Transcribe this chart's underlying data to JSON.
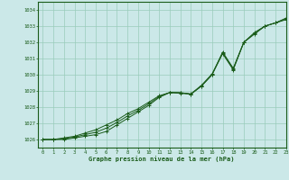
{
  "background_color": "#cbe8e8",
  "plot_bg_color": "#cbe8e8",
  "grid_color": "#99ccbb",
  "line_color": "#1a5c1a",
  "xlabel": "Graphe pression niveau de la mer (hPa)",
  "xlim": [
    -0.5,
    23
  ],
  "ylim": [
    1025.5,
    1034.5
  ],
  "yticks": [
    1026,
    1027,
    1028,
    1029,
    1030,
    1031,
    1032,
    1033,
    1034
  ],
  "xticks": [
    0,
    1,
    2,
    3,
    4,
    5,
    6,
    7,
    8,
    9,
    10,
    11,
    12,
    13,
    14,
    15,
    16,
    17,
    18,
    19,
    20,
    21,
    22,
    23
  ],
  "hours": [
    0,
    1,
    2,
    3,
    4,
    5,
    6,
    7,
    8,
    9,
    10,
    11,
    12,
    13,
    14,
    15,
    16,
    17,
    18,
    19,
    20,
    21,
    22,
    23
  ],
  "line1": [
    1026.0,
    1026.0,
    1026.0,
    1026.1,
    1026.2,
    1026.3,
    1026.5,
    1026.9,
    1027.3,
    1027.7,
    1028.1,
    1028.6,
    1028.9,
    1028.9,
    1028.8,
    1029.3,
    1030.0,
    1031.4,
    1030.4,
    1032.0,
    1032.6,
    1033.0,
    1033.2,
    1033.5
  ],
  "line2": [
    1026.0,
    1026.0,
    1026.1,
    1026.2,
    1026.4,
    1026.6,
    1026.9,
    1027.2,
    1027.6,
    1027.9,
    1028.3,
    1028.7,
    1028.9,
    1028.85,
    1028.8,
    1029.3,
    1030.0,
    1031.3,
    1030.3,
    1032.0,
    1032.5,
    1033.0,
    1033.2,
    1033.4
  ],
  "line3": [
    1026.0,
    1026.0,
    1026.05,
    1026.15,
    1026.3,
    1026.45,
    1026.7,
    1027.05,
    1027.45,
    1027.8,
    1028.2,
    1028.65,
    1028.9,
    1028.88,
    1028.82,
    1029.35,
    1030.05,
    1031.35,
    1030.35,
    1032.0,
    1032.55,
    1033.0,
    1033.2,
    1033.45
  ]
}
